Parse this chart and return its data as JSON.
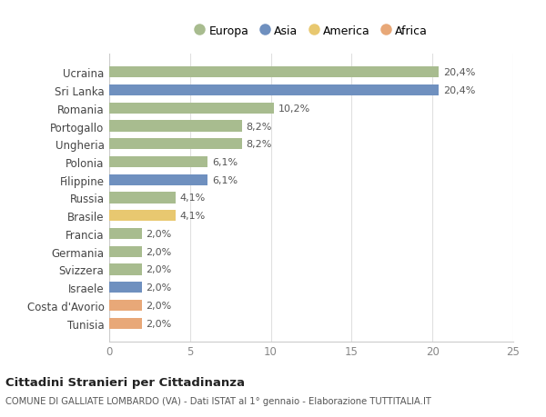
{
  "countries": [
    "Ucraina",
    "Sri Lanka",
    "Romania",
    "Portogallo",
    "Ungheria",
    "Polonia",
    "Filippine",
    "Russia",
    "Brasile",
    "Francia",
    "Germania",
    "Svizzera",
    "Israele",
    "Costa d'Avorio",
    "Tunisia"
  ],
  "values": [
    20.4,
    20.4,
    10.2,
    8.2,
    8.2,
    6.1,
    6.1,
    4.1,
    4.1,
    2.0,
    2.0,
    2.0,
    2.0,
    2.0,
    2.0
  ],
  "labels": [
    "20,4%",
    "20,4%",
    "10,2%",
    "8,2%",
    "8,2%",
    "6,1%",
    "6,1%",
    "4,1%",
    "4,1%",
    "2,0%",
    "2,0%",
    "2,0%",
    "2,0%",
    "2,0%",
    "2,0%"
  ],
  "continents": [
    "Europa",
    "Asia",
    "Europa",
    "Europa",
    "Europa",
    "Europa",
    "Asia",
    "Europa",
    "America",
    "Europa",
    "Europa",
    "Europa",
    "Asia",
    "Africa",
    "Africa"
  ],
  "colors": {
    "Europa": "#a8bc8f",
    "Asia": "#6f90bf",
    "America": "#e8c870",
    "Africa": "#e8a878"
  },
  "legend_order": [
    "Europa",
    "Asia",
    "America",
    "Africa"
  ],
  "title": "Cittadini Stranieri per Cittadinanza",
  "subtitle": "COMUNE DI GALLIATE LOMBARDO (VA) - Dati ISTAT al 1° gennaio - Elaborazione TUTTITALIA.IT",
  "xlim": [
    0,
    25
  ],
  "xticks": [
    0,
    5,
    10,
    15,
    20,
    25
  ],
  "background_color": "#ffffff",
  "grid_color": "#e0e0e0"
}
